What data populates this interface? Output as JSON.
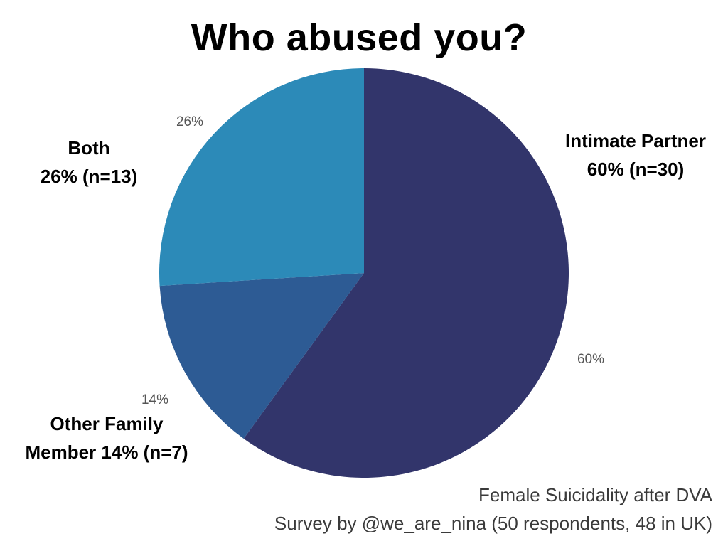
{
  "chart_data": {
    "type": "pie",
    "title": "Who abused you?",
    "slices": [
      {
        "label": "Intimate Partner",
        "value": 60,
        "value_label": "60%",
        "detail": "60% (n=30)",
        "color": "#32356b"
      },
      {
        "label": "Other Family Member",
        "value": 14,
        "value_label": "14%",
        "detail": "Member 14% (n=7)",
        "label_line1": "Other Family",
        "color": "#2d5b94"
      },
      {
        "label": "Both",
        "value": 26,
        "value_label": "26%",
        "detail": "26% (n=13)",
        "color": "#2c8ab8"
      }
    ]
  },
  "footer": {
    "line1": "Female Suicidality after DVA",
    "line2": "Survey by @we_are_nina (50 respondents, 48 in UK)"
  }
}
